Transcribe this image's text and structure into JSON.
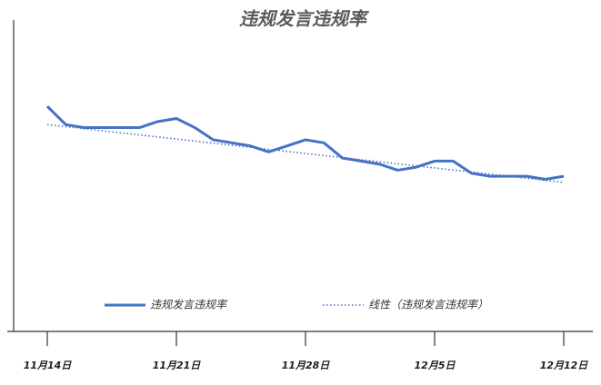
{
  "chart_data": {
    "type": "line",
    "title": "违规发言违规率",
    "categories": [
      "11月14日",
      null,
      null,
      null,
      null,
      null,
      null,
      "11月21日",
      null,
      null,
      null,
      null,
      null,
      null,
      "11月28日",
      null,
      null,
      null,
      null,
      null,
      null,
      "12月5日",
      null,
      null,
      null,
      null,
      null,
      null,
      "12月12日"
    ],
    "series": [
      {
        "name": "违规发言违规率",
        "color": "#4472c4",
        "values": [
          7.4,
          6.8,
          6.7,
          6.7,
          6.7,
          6.7,
          6.9,
          7.0,
          6.7,
          6.3,
          6.2,
          6.1,
          5.9,
          6.1,
          6.3,
          6.2,
          5.7,
          5.6,
          5.5,
          5.3,
          5.4,
          5.6,
          5.6,
          5.2,
          5.1,
          5.1,
          5.1,
          5.0,
          5.1
        ]
      }
    ],
    "trendline": {
      "name": "线性（违规发言违规率）",
      "color": "#4472c4",
      "values": [
        6.8,
        4.9
      ]
    },
    "ylim": [
      0,
      10
    ],
    "grid": false,
    "legend": "bottom"
  }
}
